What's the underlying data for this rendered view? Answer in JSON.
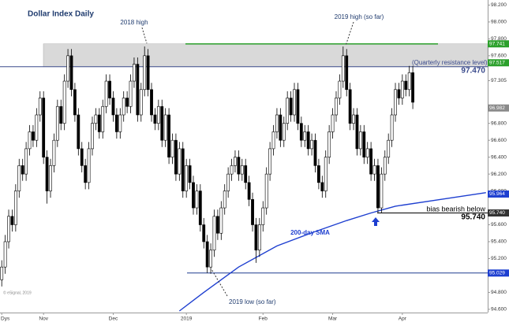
{
  "chart_data": {
    "type": "candlestick",
    "title": "Dollar Index Daily",
    "up_color": "#ffffff",
    "down_color": "#000000",
    "xlim": [
      -0.5,
      139.5
    ],
    "xticks": [
      {
        "value": 0,
        "label": "Dys"
      },
      {
        "value": 12,
        "label": "Nov"
      },
      {
        "value": 32,
        "label": "Dec"
      },
      {
        "value": 53,
        "label": "2019"
      },
      {
        "value": 75,
        "label": "Feb"
      },
      {
        "value": 95,
        "label": "Mar"
      },
      {
        "value": 115,
        "label": "Apr"
      }
    ],
    "ylim": [
      94.58,
      98.26
    ],
    "yticks": [
      {
        "value": 98.2,
        "label": "98.200"
      },
      {
        "value": 98.0,
        "label": "98.000"
      },
      {
        "value": 97.8,
        "label": "97.800"
      },
      {
        "value": 97.6,
        "label": "97.600"
      },
      {
        "value": 97.305,
        "label": "97.305"
      },
      {
        "value": 96.8,
        "label": "96.800"
      },
      {
        "value": 96.6,
        "label": "96.600"
      },
      {
        "value": 96.4,
        "label": "96.400"
      },
      {
        "value": 96.2,
        "label": "96.200"
      },
      {
        "value": 96.0,
        "label": "96.000"
      },
      {
        "value": 95.6,
        "label": "95.600"
      },
      {
        "value": 95.4,
        "label": "95.400"
      },
      {
        "value": 95.2,
        "label": "95.200"
      },
      {
        "value": 94.8,
        "label": "94.800"
      },
      {
        "value": 94.6,
        "label": "94.600"
      }
    ],
    "open": [
      94.95,
      95.1,
      95.4,
      95.7,
      95.6,
      96.0,
      96.3,
      96.2,
      96.5,
      96.7,
      96.6,
      96.9,
      97.1,
      96.4,
      96.0,
      96.3,
      96.6,
      97.0,
      96.8,
      97.3,
      97.6,
      97.2,
      96.9,
      96.5,
      96.3,
      96.1,
      96.5,
      96.8,
      96.9,
      96.7,
      97.0,
      97.3,
      97.1,
      96.9,
      96.7,
      96.9,
      97.1,
      97.0,
      97.3,
      97.5,
      96.9,
      97.2,
      97.6,
      97.2,
      96.9,
      96.8,
      97.0,
      96.6,
      96.9,
      96.4,
      96.6,
      96.2,
      96.5,
      96.0,
      96.3,
      96.1,
      95.8,
      96.0,
      95.6,
      95.4,
      95.1,
      95.3,
      95.7,
      95.5,
      95.8,
      96.0,
      96.2,
      96.3,
      96.4,
      96.2,
      96.3,
      96.1,
      95.9,
      95.6,
      95.3,
      95.6,
      95.8,
      96.2,
      96.5,
      96.7,
      96.9,
      96.6,
      96.8,
      97.1,
      96.9,
      97.2,
      96.8,
      96.6,
      96.7,
      96.5,
      96.6,
      96.3,
      96.1,
      96.0,
      96.4,
      96.7,
      96.9,
      97.1,
      97.3,
      97.6,
      97.2,
      96.8,
      96.9,
      96.5,
      96.7,
      96.4,
      96.5,
      96.2,
      96.3,
      95.8,
      96.2,
      96.4,
      96.6,
      96.9,
      97.2,
      97.1,
      97.3,
      97.2,
      97.4
    ],
    "high": [
      95.18,
      95.48,
      95.78,
      95.78,
      96.08,
      96.38,
      96.38,
      96.58,
      96.78,
      96.78,
      96.98,
      97.18,
      97.18,
      96.48,
      96.38,
      96.68,
      97.08,
      97.08,
      97.38,
      97.68,
      97.68,
      97.28,
      96.98,
      96.58,
      96.38,
      96.58,
      96.88,
      96.98,
      96.98,
      97.08,
      97.38,
      97.38,
      97.18,
      96.98,
      96.98,
      97.18,
      97.18,
      97.38,
      97.58,
      97.58,
      97.28,
      97.71,
      97.68,
      97.28,
      96.98,
      97.08,
      97.08,
      96.98,
      96.98,
      96.68,
      96.68,
      96.58,
      96.58,
      96.38,
      96.38,
      96.18,
      96.08,
      96.08,
      95.68,
      95.48,
      95.38,
      95.78,
      95.78,
      95.88,
      96.08,
      96.28,
      96.38,
      96.48,
      96.48,
      96.38,
      96.38,
      96.18,
      95.98,
      95.68,
      95.68,
      95.88,
      96.28,
      96.58,
      96.78,
      96.98,
      96.98,
      96.88,
      97.18,
      97.18,
      97.28,
      97.28,
      96.88,
      96.78,
      96.78,
      96.68,
      96.68,
      96.38,
      96.18,
      96.48,
      96.78,
      96.98,
      97.18,
      97.38,
      97.71,
      97.68,
      97.28,
      96.98,
      96.98,
      96.78,
      96.78,
      96.58,
      96.58,
      96.38,
      96.38,
      96.28,
      96.48,
      96.68,
      96.98,
      97.28,
      97.28,
      97.38,
      97.38,
      97.48,
      97.48
    ],
    "low": [
      94.87,
      95.02,
      95.32,
      95.52,
      95.52,
      95.92,
      96.12,
      96.12,
      96.42,
      96.52,
      96.52,
      96.82,
      96.32,
      95.85,
      95.92,
      96.22,
      96.52,
      96.72,
      96.72,
      97.22,
      97.12,
      96.82,
      96.42,
      96.22,
      96.02,
      96.02,
      96.42,
      96.72,
      96.62,
      96.62,
      96.92,
      97.02,
      96.82,
      96.62,
      96.62,
      96.82,
      96.92,
      96.92,
      97.22,
      96.82,
      96.82,
      97.12,
      97.12,
      96.82,
      96.72,
      96.72,
      96.52,
      96.52,
      96.32,
      96.32,
      96.12,
      96.12,
      95.92,
      95.92,
      96.02,
      95.72,
      95.72,
      95.52,
      95.32,
      95.03,
      95.02,
      95.22,
      95.42,
      95.42,
      95.72,
      95.92,
      96.12,
      96.22,
      96.12,
      96.12,
      96.02,
      95.82,
      95.52,
      95.15,
      95.22,
      95.52,
      95.72,
      96.12,
      96.42,
      96.62,
      96.52,
      96.52,
      96.72,
      96.82,
      96.82,
      96.72,
      96.52,
      96.52,
      96.42,
      96.42,
      96.22,
      96.02,
      95.92,
      95.92,
      96.32,
      96.62,
      96.82,
      97.02,
      97.22,
      97.12,
      96.72,
      96.72,
      96.42,
      96.42,
      96.32,
      96.32,
      96.12,
      96.12,
      95.74,
      95.74,
      96.12,
      96.32,
      96.52,
      96.82,
      97.02,
      97.02,
      97.12,
      97.12,
      96.97
    ],
    "close": [
      95.1,
      95.4,
      95.7,
      95.6,
      96.0,
      96.3,
      96.2,
      96.5,
      96.7,
      96.6,
      96.9,
      97.1,
      96.4,
      96.0,
      96.3,
      96.6,
      97.0,
      96.8,
      97.3,
      97.6,
      97.2,
      96.9,
      96.5,
      96.3,
      96.1,
      96.5,
      96.8,
      96.9,
      96.7,
      97.0,
      97.3,
      97.1,
      96.9,
      96.7,
      96.9,
      97.1,
      97.0,
      97.3,
      97.5,
      96.9,
      97.2,
      97.6,
      97.2,
      96.9,
      96.8,
      97.0,
      96.6,
      96.9,
      96.4,
      96.6,
      96.2,
      96.5,
      96.0,
      96.3,
      96.1,
      95.8,
      96.0,
      95.6,
      95.4,
      95.1,
      95.3,
      95.7,
      95.5,
      95.8,
      96.0,
      96.2,
      96.3,
      96.4,
      96.2,
      96.3,
      96.1,
      95.9,
      95.6,
      95.3,
      95.6,
      95.8,
      96.2,
      96.5,
      96.7,
      96.9,
      96.6,
      96.8,
      97.1,
      96.9,
      97.2,
      96.8,
      96.6,
      96.7,
      96.5,
      96.6,
      96.3,
      96.1,
      96.0,
      96.4,
      96.7,
      96.9,
      97.1,
      97.3,
      97.6,
      97.2,
      96.8,
      96.9,
      96.5,
      96.7,
      96.4,
      96.5,
      96.2,
      96.3,
      95.8,
      96.2,
      96.4,
      96.6,
      96.9,
      97.2,
      97.1,
      97.3,
      97.2,
      97.4,
      97.05
    ],
    "sma": {
      "name": "200-day SMA",
      "color": "#1e3fd0",
      "x": [
        51,
        58,
        63,
        68,
        79,
        90,
        99,
        106,
        113,
        126,
        139
      ],
      "values": [
        94.58,
        94.8,
        94.95,
        95.1,
        95.35,
        95.52,
        95.65,
        95.74,
        95.82,
        95.9,
        95.98
      ]
    },
    "zone": {
      "low": 97.47,
      "high": 97.741,
      "color": "#d9d9d9"
    },
    "levels": [
      {
        "value": 97.741,
        "color": "#2ca02c"
      },
      {
        "value": 97.47,
        "color": "#3a4a8c"
      },
      {
        "value": 95.74,
        "color": "#000000"
      },
      {
        "value": 95.029,
        "color": "#1f3b8f"
      }
    ],
    "price_tags": [
      {
        "value": 97.741,
        "label": "97.741",
        "color": "#2ca02c"
      },
      {
        "value": 97.517,
        "label": "97.517",
        "color": "#2ca02c"
      },
      {
        "value": 96.982,
        "label": "96.982",
        "color": "#8a8a8a"
      },
      {
        "value": 95.964,
        "label": "95.964",
        "color": "#1e3fd0"
      },
      {
        "value": 95.74,
        "label": "95.740",
        "color": "#333333"
      },
      {
        "value": 95.029,
        "label": "95.029",
        "color": "#1e3fd0"
      }
    ],
    "annotations": {
      "high_2018": "2018 high",
      "high_2019": "2019 high (so far)",
      "resistance": "(Quarterly resistance level)",
      "resistance_value": "97.470",
      "bias": "bias bearish below",
      "bias_value": "95.740",
      "low_2019": "2019 low (so far)",
      "source": "© eSignal, 2019"
    }
  }
}
